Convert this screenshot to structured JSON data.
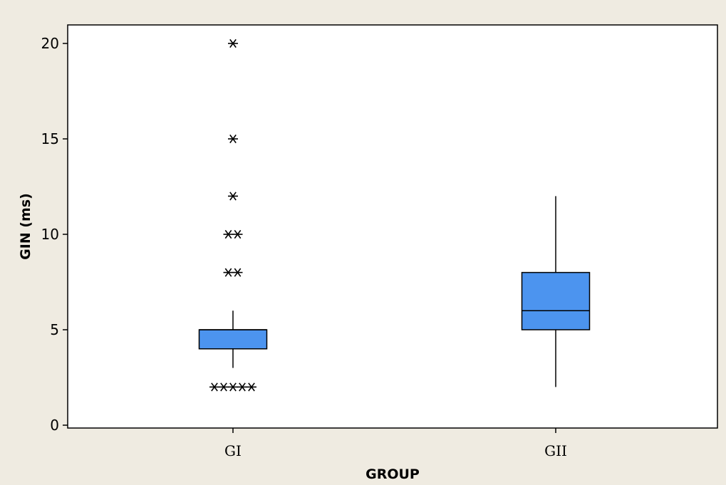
{
  "chart_data": {
    "type": "boxplot",
    "title": "",
    "xlabel": "GROUP",
    "ylabel": "GIN (ms)",
    "ylim": [
      0,
      21
    ],
    "yticks": [
      0,
      5,
      10,
      15,
      20
    ],
    "categories": [
      "GI",
      "GII"
    ],
    "grid": false,
    "legend": "none",
    "box_color": "#4c94ef",
    "background_color": "#efebe1",
    "plot_color": "#ffffff",
    "outlier_marker": "asterisk",
    "boxes": [
      {
        "category": "GI",
        "whisker_low": 3,
        "q1": 4,
        "median": 5,
        "q3": 5,
        "whisker_high": 6,
        "outliers": [
          {
            "value": 20,
            "count": 1
          },
          {
            "value": 15,
            "count": 1
          },
          {
            "value": 12,
            "count": 1
          },
          {
            "value": 10,
            "count": 2
          },
          {
            "value": 8,
            "count": 2
          },
          {
            "value": 2,
            "count": 5
          }
        ]
      },
      {
        "category": "GII",
        "whisker_low": 2,
        "q1": 5,
        "median": 6,
        "q3": 8,
        "whisker_high": 12,
        "outliers": []
      }
    ]
  }
}
